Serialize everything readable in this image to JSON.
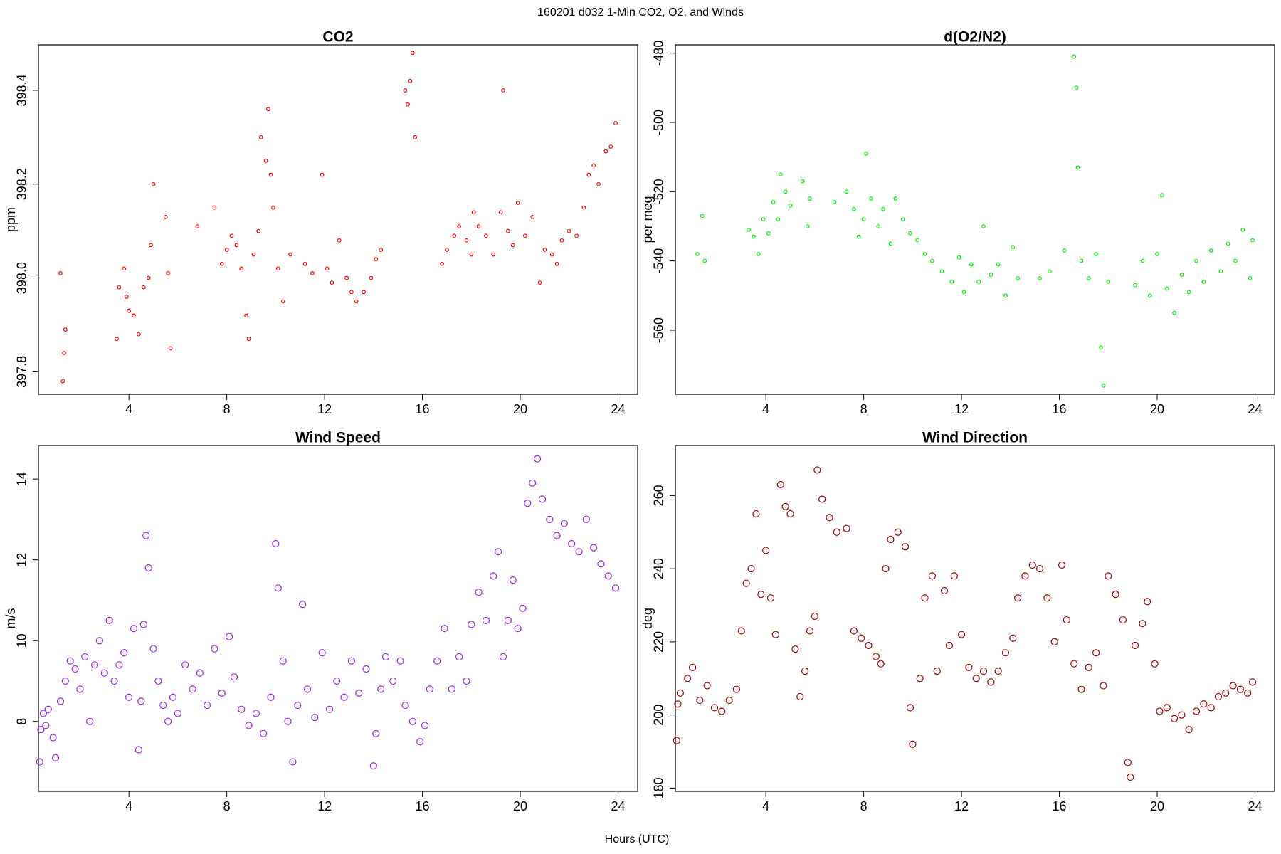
{
  "title": "160201   d032   1-Min CO2, O2, and Winds",
  "xlabel": "Hours (UTC)",
  "chart_data": [
    {
      "type": "scatter",
      "title": "CO2",
      "ylabel": "ppm",
      "color": "#ff0000",
      "xlim": [
        0.3,
        24.8
      ],
      "xticks": [
        4,
        8,
        12,
        16,
        20,
        24
      ],
      "ylim": [
        397.752,
        398.497
      ],
      "yticks": [
        397.8,
        {
          "value": 398,
          "label": "398.0"
        },
        398.2,
        398.4
      ],
      "x": [
        1.2,
        1.3,
        1.35,
        1.4,
        3.5,
        3.6,
        3.8,
        3.9,
        4.0,
        4.2,
        4.4,
        4.6,
        4.8,
        4.9,
        5.0,
        5.5,
        5.6,
        5.7,
        6.8,
        7.5,
        7.8,
        8.0,
        8.2,
        8.4,
        8.6,
        8.8,
        8.9,
        9.1,
        9.3,
        9.4,
        9.6,
        9.7,
        9.8,
        9.9,
        10.1,
        10.3,
        10.6,
        11.2,
        11.5,
        11.9,
        12.1,
        12.3,
        12.6,
        12.9,
        13.1,
        13.3,
        13.6,
        13.9,
        14.1,
        14.3,
        15.3,
        15.4,
        15.5,
        15.6,
        15.7,
        16.8,
        17.0,
        17.3,
        17.5,
        17.8,
        18.0,
        18.1,
        18.3,
        18.6,
        18.9,
        19.2,
        19.3,
        19.5,
        19.7,
        19.9,
        20.2,
        20.5,
        20.8,
        21.0,
        21.3,
        21.5,
        21.7,
        22.0,
        22.3,
        22.6,
        22.8,
        23.0,
        23.2,
        23.5,
        23.7,
        23.9
      ],
      "values": [
        398.01,
        397.78,
        397.84,
        397.89,
        397.87,
        397.98,
        398.02,
        397.96,
        397.93,
        397.92,
        397.88,
        397.98,
        398.0,
        398.07,
        398.2,
        398.13,
        398.01,
        397.85,
        398.11,
        398.15,
        398.03,
        398.06,
        398.09,
        398.07,
        398.02,
        397.92,
        397.87,
        398.05,
        398.1,
        398.3,
        398.25,
        398.36,
        398.22,
        398.15,
        398.02,
        397.95,
        398.05,
        398.03,
        398.01,
        398.22,
        398.02,
        397.99,
        398.08,
        398.0,
        397.97,
        397.95,
        397.97,
        398.0,
        398.04,
        398.06,
        398.4,
        398.37,
        398.42,
        398.48,
        398.3,
        398.03,
        398.06,
        398.09,
        398.11,
        398.08,
        398.05,
        398.14,
        398.11,
        398.09,
        398.05,
        398.14,
        398.4,
        398.1,
        398.07,
        398.16,
        398.09,
        398.13,
        397.99,
        398.06,
        398.05,
        398.03,
        398.08,
        398.1,
        398.09,
        398.15,
        398.22,
        398.24,
        398.2,
        398.27,
        398.28,
        398.33
      ]
    },
    {
      "type": "scatter",
      "title": "d(O2/N2)",
      "ylabel": "per meg",
      "color": "#00ee00",
      "xlim": [
        0.3,
        24.8
      ],
      "xticks": [
        4,
        8,
        12,
        16,
        20,
        24
      ],
      "ylim": [
        -578.5,
        -477.6
      ],
      "yticks": [
        -560,
        -540,
        -520,
        -500,
        -480
      ],
      "x": [
        1.2,
        1.4,
        1.5,
        3.3,
        3.5,
        3.7,
        3.9,
        4.1,
        4.3,
        4.5,
        4.6,
        4.8,
        5.0,
        5.5,
        5.7,
        5.8,
        6.8,
        7.3,
        7.6,
        7.8,
        8.0,
        8.1,
        8.3,
        8.6,
        8.8,
        9.1,
        9.3,
        9.6,
        9.9,
        10.2,
        10.5,
        10.8,
        11.2,
        11.6,
        11.9,
        12.1,
        12.4,
        12.7,
        12.9,
        13.2,
        13.5,
        13.8,
        14.1,
        14.3,
        15.2,
        15.6,
        16.2,
        16.6,
        16.7,
        16.75,
        16.9,
        17.2,
        17.5,
        17.7,
        17.8,
        18.0,
        19.1,
        19.4,
        19.7,
        20.0,
        20.2,
        20.4,
        20.7,
        21.0,
        21.3,
        21.6,
        21.9,
        22.2,
        22.6,
        22.9,
        23.2,
        23.5,
        23.8,
        23.9
      ],
      "values": [
        -538,
        -527,
        -540,
        -531,
        -533,
        -538,
        -528,
        -532,
        -523,
        -528,
        -515,
        -520,
        -524,
        -517,
        -530,
        -522,
        -523,
        -520,
        -525,
        -533,
        -528,
        -509,
        -522,
        -530,
        -525,
        -535,
        -522,
        -528,
        -532,
        -534,
        -538,
        -540,
        -543,
        -546,
        -539,
        -549,
        -541,
        -546,
        -530,
        -544,
        -541,
        -550,
        -536,
        -545,
        -545,
        -543,
        -537,
        -481,
        -490,
        -513,
        -540,
        -545,
        -538,
        -565,
        -576,
        -546,
        -547,
        -540,
        -550,
        -538,
        -521,
        -548,
        -555,
        -544,
        -549,
        -540,
        -546,
        -537,
        -543,
        -535,
        -540,
        -531,
        -545,
        -534
      ]
    },
    {
      "type": "scatter",
      "title": "Wind Speed",
      "ylabel": "m/s",
      "color": "#a020f0",
      "xlim": [
        0.3,
        24.8
      ],
      "xticks": [
        4,
        8,
        12,
        16,
        20,
        24
      ],
      "ylim": [
        6.27,
        14.83
      ],
      "yticks": [
        8,
        10,
        12,
        14
      ],
      "x": [
        0.35,
        0.4,
        0.5,
        0.6,
        0.7,
        0.9,
        1.0,
        1.2,
        1.4,
        1.6,
        1.8,
        2.0,
        2.2,
        2.4,
        2.6,
        2.8,
        3.0,
        3.2,
        3.4,
        3.6,
        3.8,
        4.0,
        4.2,
        4.4,
        4.5,
        4.6,
        4.7,
        4.8,
        5.0,
        5.2,
        5.4,
        5.6,
        5.8,
        6.0,
        6.3,
        6.6,
        6.9,
        7.2,
        7.5,
        7.8,
        8.1,
        8.3,
        8.6,
        8.9,
        9.2,
        9.5,
        9.8,
        10.0,
        10.1,
        10.3,
        10.5,
        10.7,
        10.9,
        11.1,
        11.3,
        11.6,
        11.9,
        12.2,
        12.5,
        12.8,
        13.1,
        13.4,
        13.7,
        14.0,
        14.1,
        14.3,
        14.5,
        14.8,
        15.1,
        15.3,
        15.6,
        15.9,
        16.1,
        16.3,
        16.6,
        16.9,
        17.2,
        17.5,
        17.8,
        18.0,
        18.3,
        18.6,
        18.9,
        19.1,
        19.3,
        19.5,
        19.7,
        19.9,
        20.1,
        20.3,
        20.5,
        20.7,
        20.9,
        21.2,
        21.5,
        21.8,
        22.1,
        22.4,
        22.7,
        23.0,
        23.3,
        23.6,
        23.9
      ],
      "values": [
        7.0,
        7.8,
        8.2,
        7.9,
        8.3,
        7.6,
        7.1,
        8.5,
        9.0,
        9.5,
        9.3,
        8.8,
        9.6,
        8.0,
        9.4,
        10.0,
        9.2,
        10.5,
        9.0,
        9.4,
        9.7,
        8.6,
        10.3,
        7.3,
        8.5,
        10.4,
        12.6,
        11.8,
        9.8,
        9.0,
        8.4,
        8.0,
        8.6,
        8.2,
        9.4,
        8.8,
        9.2,
        8.4,
        9.8,
        8.7,
        10.1,
        9.1,
        8.3,
        7.9,
        8.2,
        7.7,
        8.6,
        12.4,
        11.3,
        9.5,
        8.0,
        7.0,
        8.4,
        10.9,
        8.8,
        8.1,
        9.7,
        8.3,
        9.0,
        8.6,
        9.5,
        8.7,
        9.3,
        6.9,
        7.7,
        8.8,
        9.6,
        9.0,
        9.5,
        8.4,
        8.0,
        7.5,
        7.9,
        8.8,
        9.5,
        10.3,
        8.8,
        9.6,
        9.0,
        10.4,
        11.2,
        10.5,
        11.6,
        12.2,
        9.6,
        10.5,
        11.5,
        10.3,
        10.8,
        13.4,
        13.9,
        14.5,
        13.5,
        13.0,
        12.6,
        12.9,
        12.4,
        12.2,
        13.0,
        12.3,
        11.9,
        11.6,
        11.3
      ]
    },
    {
      "type": "scatter",
      "title": "Wind Direction",
      "ylabel": "deg",
      "color": "#a50000",
      "xlim": [
        0.3,
        24.8
      ],
      "xticks": [
        4,
        8,
        12,
        16,
        20,
        24
      ],
      "ylim": [
        179.1,
        273.7
      ],
      "yticks": [
        180,
        200,
        220,
        240,
        260
      ],
      "x": [
        0.35,
        0.4,
        0.5,
        0.8,
        1.0,
        1.3,
        1.6,
        1.9,
        2.2,
        2.5,
        2.8,
        3.0,
        3.2,
        3.4,
        3.6,
        3.8,
        4.0,
        4.2,
        4.4,
        4.6,
        4.8,
        5.0,
        5.2,
        5.4,
        5.6,
        5.8,
        6.0,
        6.1,
        6.3,
        6.6,
        6.9,
        7.3,
        7.6,
        7.9,
        8.2,
        8.5,
        8.7,
        8.9,
        9.1,
        9.4,
        9.7,
        9.9,
        10.0,
        10.3,
        10.5,
        10.8,
        11.0,
        11.3,
        11.5,
        11.7,
        12.0,
        12.3,
        12.6,
        12.9,
        13.2,
        13.5,
        13.8,
        14.1,
        14.3,
        14.6,
        14.9,
        15.2,
        15.5,
        15.8,
        16.1,
        16.3,
        16.6,
        16.9,
        17.2,
        17.5,
        17.8,
        18.0,
        18.3,
        18.6,
        18.8,
        18.9,
        19.1,
        19.4,
        19.6,
        19.9,
        20.1,
        20.4,
        20.7,
        21.0,
        21.3,
        21.6,
        21.9,
        22.2,
        22.5,
        22.8,
        23.1,
        23.4,
        23.7,
        23.9
      ],
      "values": [
        193,
        203,
        206,
        210,
        213,
        204,
        208,
        202,
        201,
        204,
        207,
        223,
        236,
        240,
        255,
        233,
        245,
        232,
        222,
        263,
        257,
        255,
        218,
        205,
        212,
        223,
        227,
        267,
        259,
        254,
        250,
        251,
        223,
        221,
        219,
        216,
        214,
        240,
        248,
        250,
        246,
        202,
        192,
        210,
        232,
        238,
        212,
        234,
        219,
        238,
        222,
        213,
        210,
        212,
        209,
        212,
        217,
        221,
        232,
        238,
        241,
        240,
        232,
        220,
        241,
        226,
        214,
        207,
        213,
        217,
        208,
        238,
        233,
        226,
        187,
        183,
        219,
        225,
        231,
        214,
        201,
        202,
        199,
        200,
        196,
        201,
        203,
        202,
        205,
        206,
        208,
        207,
        206,
        209
      ]
    }
  ]
}
